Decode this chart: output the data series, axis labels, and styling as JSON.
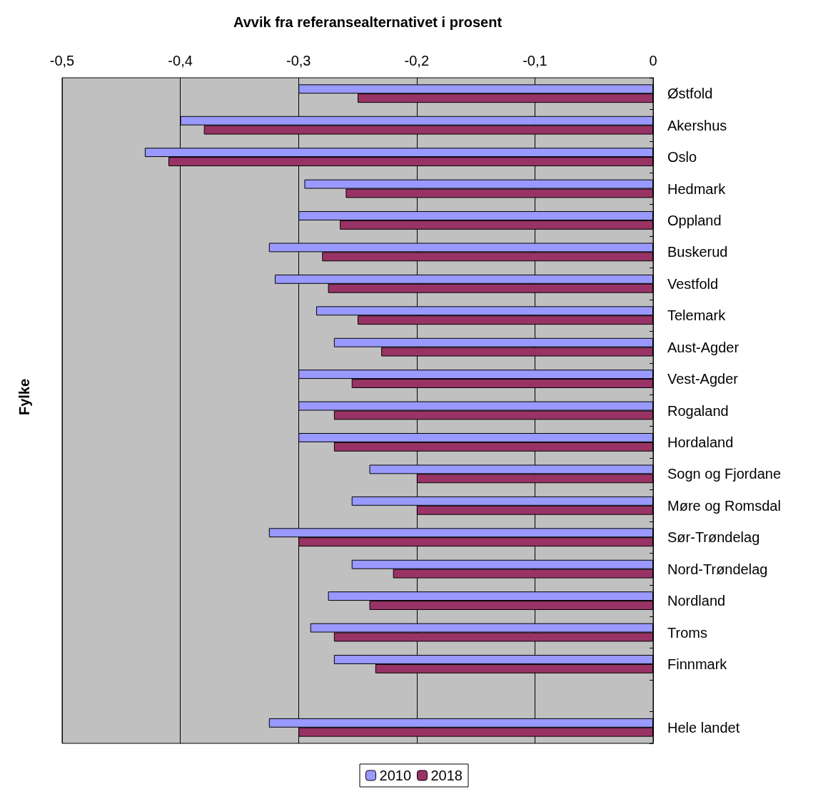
{
  "chart_data": {
    "type": "bar",
    "orientation": "horizontal",
    "xlabel": "Avvik fra referansealternativet i prosent",
    "ylabel": "Fylke",
    "categories": [
      "Østfold",
      "Akershus",
      "Oslo",
      "Hedmark",
      "Oppland",
      "Buskerud",
      "Vestfold",
      "Telemark",
      "Aust-Agder",
      "Vest-Agder",
      "Rogaland",
      "Hordaland",
      "Sogn og Fjordane",
      "Møre og Romsdal",
      "Sør-Trøndelag",
      "Nord-Trøndelag",
      "Nordland",
      "Troms",
      "Finnmark",
      null,
      "Hele landet"
    ],
    "series": [
      {
        "name": "2010",
        "color": "#9999ff",
        "values": [
          -0.3,
          -0.4,
          -0.43,
          -0.295,
          -0.3,
          -0.325,
          -0.32,
          -0.285,
          -0.27,
          -0.3,
          -0.3,
          -0.3,
          -0.24,
          -0.255,
          -0.325,
          -0.255,
          -0.275,
          -0.29,
          -0.27,
          null,
          -0.325
        ]
      },
      {
        "name": "2018",
        "color": "#993366",
        "values": [
          -0.25,
          -0.38,
          -0.41,
          -0.26,
          -0.265,
          -0.28,
          -0.275,
          -0.25,
          -0.23,
          -0.255,
          -0.27,
          -0.27,
          -0.2,
          -0.2,
          -0.3,
          -0.22,
          -0.24,
          -0.27,
          -0.235,
          null,
          -0.3
        ]
      }
    ],
    "xlim": [
      -0.5,
      0
    ],
    "xticks": [
      {
        "value": -0.5,
        "label": "-0,5"
      },
      {
        "value": -0.4,
        "label": "-0,4"
      },
      {
        "value": -0.3,
        "label": "-0,3"
      },
      {
        "value": -0.2,
        "label": "-0,2"
      },
      {
        "value": -0.1,
        "label": "-0,1"
      },
      0
    ],
    "grid": "x",
    "legend": "bottom"
  }
}
